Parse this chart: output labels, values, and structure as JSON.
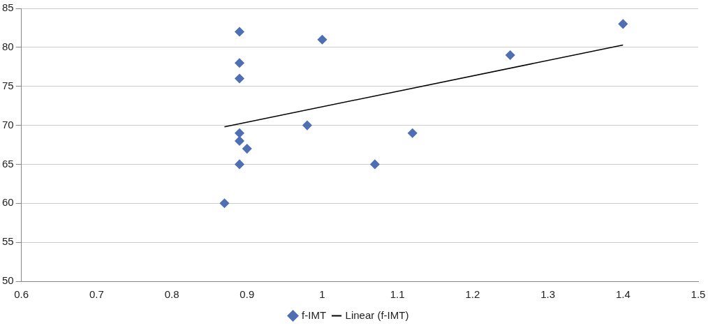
{
  "chart_data": {
    "type": "scatter",
    "xlim": [
      0.6,
      1.5
    ],
    "xticks": [
      0.6,
      0.7,
      0.8,
      0.9,
      1,
      1.1,
      1.2,
      1.3,
      1.4,
      1.5
    ],
    "ylim": [
      50,
      85
    ],
    "yticks": [
      50,
      55,
      60,
      65,
      70,
      75,
      80,
      85
    ],
    "grid": "y",
    "legend": "bottom",
    "series": [
      {
        "name": "f-IMT",
        "marker": "diamond",
        "color": "#4f6fb5",
        "x": [
          0.87,
          0.89,
          0.89,
          0.89,
          0.9,
          0.89,
          0.89,
          0.89,
          0.98,
          1.0,
          1.07,
          1.12,
          1.25,
          1.4
        ],
        "values": [
          60,
          65,
          68,
          69,
          67,
          76,
          78,
          82,
          70,
          81,
          65,
          69,
          79,
          83
        ]
      },
      {
        "name": "Linear (f-IMT)",
        "type": "line",
        "marker": "none",
        "line_style": "solid",
        "color": "#000000",
        "x": [
          0.87,
          1.4
        ],
        "values": [
          69.8,
          80.3
        ]
      }
    ]
  }
}
